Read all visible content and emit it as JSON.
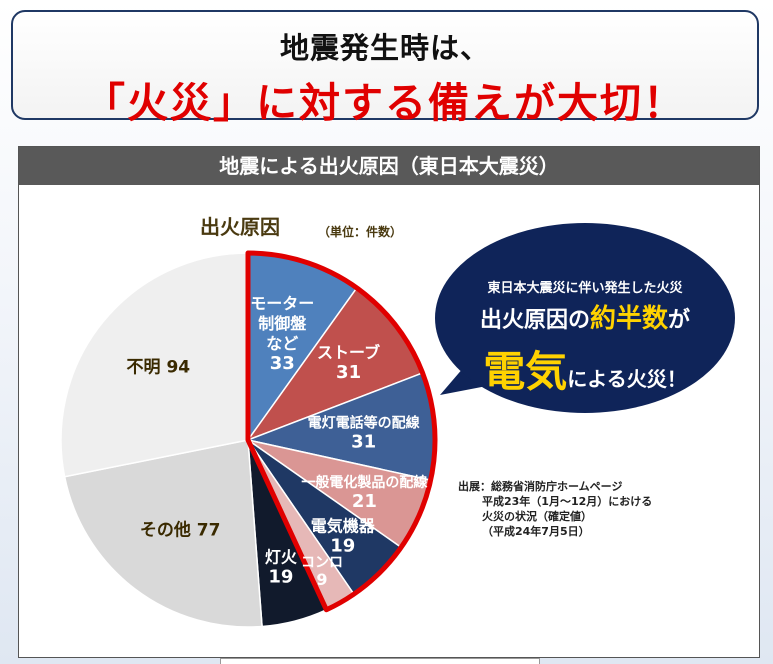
{
  "header": {
    "line1": "地震発生時は、",
    "line2": "「火災」に対する備えが大切！"
  },
  "panel": {
    "title": "地震による出火原因（東日本大震災）"
  },
  "chart_data": {
    "type": "pie",
    "title": "出火原因",
    "unit": "（単位：件数）",
    "slices": [
      {
        "label": "モーター\n制御盤\nなど",
        "value": 33,
        "color": "#4f81bd",
        "highlight": true
      },
      {
        "label": "ストーブ",
        "value": 31,
        "color": "#c0504d",
        "highlight": true
      },
      {
        "label": "電灯電話等の配線",
        "value": 31,
        "color": "#3e6096",
        "highlight": true
      },
      {
        "label": "一般電化製品の配線",
        "value": 21,
        "color": "#da9694",
        "highlight": true
      },
      {
        "label": "電気機器",
        "value": 19,
        "color": "#1f3864",
        "highlight": true
      },
      {
        "label": "コンロ",
        "value": 9,
        "color": "#e6b8b7",
        "highlight": true
      },
      {
        "label": "灯火",
        "value": 19,
        "color": "#111a2c",
        "highlight": false
      },
      {
        "label": "その他",
        "value": 77,
        "color": "#d9d9d9",
        "highlight": false
      },
      {
        "label": "不明",
        "value": 94,
        "color": "#efefef",
        "highlight": false
      }
    ]
  },
  "callout": {
    "line1": "東日本大震災に伴い発生した火災",
    "line2_a": "出火原因の",
    "line2_b": "約半数",
    "line2_c": "が",
    "line3_a": "電気",
    "line3_b": "による火災！"
  },
  "source": {
    "line1": "出展：総務省消防庁ホームページ",
    "line2": "平成23年（1月～12月）における",
    "line3": "火災の状況（確定値）",
    "line4": "（平成24年7月5日）"
  },
  "colors": {
    "highlight_border": "#e00000",
    "callout_bg": "#0f2459",
    "callout_accent": "#ffd200"
  }
}
